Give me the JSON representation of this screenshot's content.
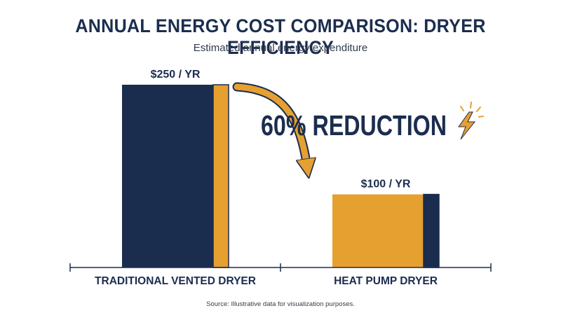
{
  "header": {
    "title": "ANNUAL ENERGY COST COMPARISON: DRYER EFFICIENCY",
    "subtitle": "Estimated annual energy expenditure"
  },
  "annotation": {
    "reduction_label": "60% REDUCTION"
  },
  "footer": {
    "source": "Source: Illustrative data for visualization purposes."
  },
  "colors": {
    "navy": "#1b2d4f",
    "gold": "#e6a030"
  },
  "chart_data": {
    "type": "bar",
    "title": "ANNUAL ENERGY COST COMPARISON: DRYER EFFICIENCY",
    "subtitle": "Estimated annual energy expenditure",
    "categories": [
      "TRADITIONAL VENTED DRYER",
      "HEAT PUMP DRYER"
    ],
    "values": [
      250,
      100
    ],
    "value_labels": [
      "$250 / YR",
      "$100 / YR"
    ],
    "unit": "$ / YR",
    "ylim": [
      0,
      250
    ],
    "grid": false,
    "legend": "none",
    "annotations": [
      "60% REDUCTION"
    ]
  }
}
